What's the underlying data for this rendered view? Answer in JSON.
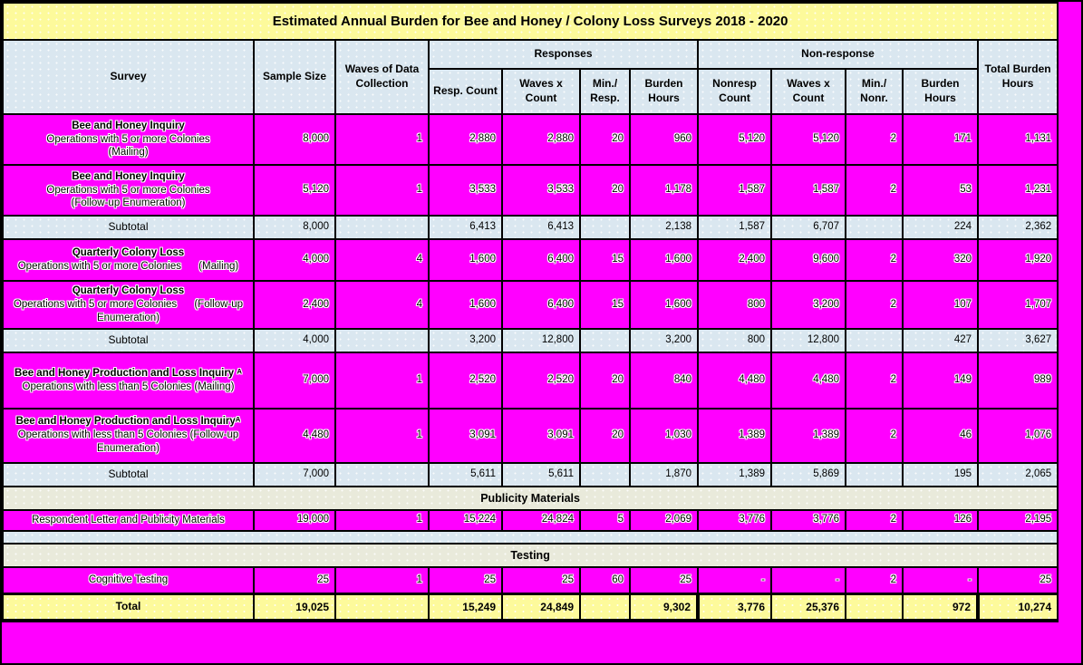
{
  "title": "Estimated Annual Burden for Bee and Honey / Colony Loss Surveys 2018 - 2020",
  "colors": {
    "magenta": "#ff00ff",
    "yellow": "#fdfa9b",
    "blue": "#dae7f0",
    "beige": "#e9eadb",
    "border": "#000000"
  },
  "table": {
    "headers": {
      "survey": "Survey",
      "sample_size": "Sample Size",
      "waves": "Waves of Data Collection",
      "responses_group": "Responses",
      "nonresponse_group": "Non-response",
      "total": "Total Burden Hours",
      "sub": [
        "Resp. Count",
        "Waves x Count",
        "Min./\nResp.",
        "Burden Hours",
        "Nonresp Count",
        "Waves x Count",
        "Min./\nNonr.",
        "Burden Hours"
      ]
    },
    "rows": [
      {
        "kind": "data",
        "survey": {
          "bold": "Bee and Honey Inquiry",
          "inline": false,
          "rest": "Operations with 5 or more Colonies\n(Mailing)"
        },
        "values": [
          "8,000",
          "1",
          "2,880",
          "2,880",
          "20",
          "960",
          "5,120",
          "5,120",
          "2",
          "171",
          "1,131"
        ]
      },
      {
        "kind": "data",
        "survey": {
          "bold": "Bee and Honey Inquiry",
          "inline": false,
          "rest": "Operations with 5 or more Colonies\n(Follow-up Enumeration)"
        },
        "values": [
          "5,120",
          "1",
          "3,533",
          "3,533",
          "20",
          "1,178",
          "1,587",
          "1,587",
          "2",
          "53",
          "1,231"
        ]
      },
      {
        "kind": "subtotal",
        "label": "Subtotal",
        "values": [
          "8,000",
          "",
          "6,413",
          "6,413",
          "",
          "2,138",
          "1,587",
          "6,707",
          "",
          "224",
          "2,362"
        ]
      },
      {
        "kind": "data",
        "survey": {
          "bold": "Quarterly Colony Loss",
          "inline": false,
          "rest": "Operations with 5 or more Colonies      (Mailing)"
        },
        "values": [
          "4,000",
          "4",
          "1,600",
          "6,400",
          "15",
          "1,600",
          "2,400",
          "9,600",
          "2",
          "320",
          "1,920"
        ]
      },
      {
        "kind": "data",
        "survey": {
          "bold": "Quarterly Colony Loss",
          "inline": false,
          "rest": "Operations with 5 or more Colonies      (Follow-up Enumeration)"
        },
        "values": [
          "2,400",
          "4",
          "1,600",
          "6,400",
          "15",
          "1,600",
          "800",
          "3,200",
          "2",
          "107",
          "1,707"
        ]
      },
      {
        "kind": "subtotal",
        "label": "Subtotal",
        "values": [
          "4,000",
          "",
          "3,200",
          "12,800",
          "",
          "3,200",
          "800",
          "12,800",
          "",
          "427",
          "3,627"
        ]
      },
      {
        "kind": "data",
        "survey": {
          "bold": "Bee and Honey Production and Loss Inquiry ᴬ",
          "inline": true,
          "rest": "Operations with less than 5 Colonies (Mailing)"
        },
        "values": [
          "7,000",
          "1",
          "2,520",
          "2,520",
          "20",
          "840",
          "4,480",
          "4,480",
          "2",
          "149",
          "989"
        ]
      },
      {
        "kind": "data",
        "survey": {
          "bold": "Bee and Honey Production and Loss Inquiryᴬ",
          "inline": true,
          "rest": "Operations with less than 5 Colonies (Follow-up Enumeration)"
        },
        "values": [
          "4,480",
          "1",
          "3,091",
          "3,091",
          "20",
          "1,030",
          "1,389",
          "1,389",
          "2",
          "46",
          "1,076"
        ]
      },
      {
        "kind": "subtotal",
        "label": "Subtotal",
        "values": [
          "7,000",
          "",
          "5,611",
          "5,611",
          "",
          "1,870",
          "1,389",
          "5,869",
          "",
          "195",
          "2,065"
        ]
      },
      {
        "kind": "section",
        "label": "Publicity Materials"
      },
      {
        "kind": "data",
        "survey": {
          "bold": null,
          "inline": false,
          "rest": "Respondent  Letter and Publicity Materials"
        },
        "values": [
          "19,000",
          "1",
          "15,224",
          "24,824",
          "5",
          "2,069",
          "3,776",
          "3,776",
          "2",
          "126",
          "2,195"
        ]
      },
      {
        "kind": "spacer"
      },
      {
        "kind": "section",
        "label": "Testing"
      },
      {
        "kind": "data",
        "survey": {
          "bold": null,
          "inline": false,
          "rest": "Cognitive Testing"
        },
        "values": [
          "25",
          "1",
          "25",
          "25",
          "60",
          "25",
          "-",
          "-",
          "2",
          "-",
          "25"
        ]
      },
      {
        "kind": "total",
        "label": "Total",
        "values": [
          "19,025",
          "",
          "15,249",
          "24,849",
          "",
          "9,302",
          "3,776",
          "25,376",
          "",
          "972",
          "10,274"
        ]
      }
    ]
  }
}
